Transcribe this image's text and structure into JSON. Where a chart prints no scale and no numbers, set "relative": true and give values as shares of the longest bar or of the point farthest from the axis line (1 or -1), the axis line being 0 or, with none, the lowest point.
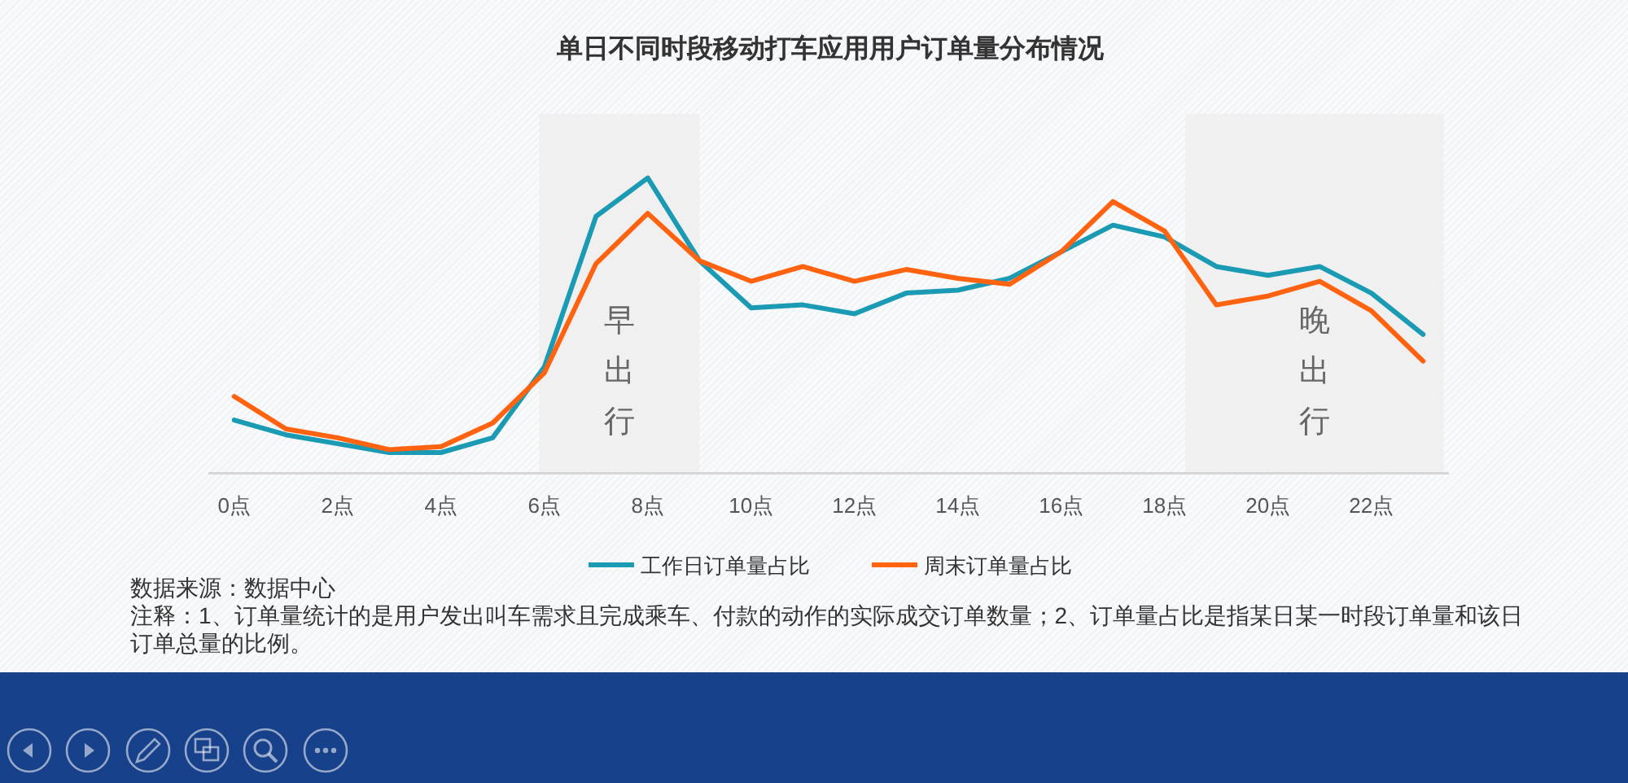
{
  "chart_data": {
    "type": "line",
    "title": "单日不同时段移动打车应用用户订单量分布情况",
    "x": [
      0,
      1,
      2,
      3,
      4,
      5,
      6,
      7,
      8,
      9,
      10,
      11,
      12,
      13,
      14,
      15,
      16,
      17,
      18,
      19,
      20,
      21,
      22,
      23
    ],
    "xlim": [
      -0.5,
      23.5
    ],
    "xticks": [
      {
        "value": 0,
        "label": "0点"
      },
      {
        "value": 2,
        "label": "2点"
      },
      {
        "value": 4,
        "label": "4点"
      },
      {
        "value": 6,
        "label": "6点"
      },
      {
        "value": 8,
        "label": "8点"
      },
      {
        "value": 10,
        "label": "10点"
      },
      {
        "value": 12,
        "label": "12点"
      },
      {
        "value": 14,
        "label": "14点"
      },
      {
        "value": 16,
        "label": "16点"
      },
      {
        "value": 18,
        "label": "18点"
      },
      {
        "value": 20,
        "label": "20点"
      },
      {
        "value": 22,
        "label": "22点"
      }
    ],
    "relative": true,
    "series": [
      {
        "name": "工作日订单量占比",
        "color": "#1b9bb3",
        "values": [
          0.18,
          0.13,
          0.1,
          0.07,
          0.07,
          0.12,
          0.36,
          0.87,
          1.0,
          0.72,
          0.56,
          0.57,
          0.54,
          0.61,
          0.62,
          0.66,
          0.75,
          0.84,
          0.8,
          0.7,
          0.67,
          0.7,
          0.61,
          0.47
        ]
      },
      {
        "name": "周末订单量占比",
        "color": "#ff6310",
        "values": [
          0.26,
          0.15,
          0.12,
          0.08,
          0.09,
          0.17,
          0.34,
          0.71,
          0.88,
          0.72,
          0.65,
          0.7,
          0.65,
          0.69,
          0.66,
          0.64,
          0.75,
          0.92,
          0.82,
          0.57,
          0.6,
          0.65,
          0.55,
          0.38
        ]
      }
    ],
    "bands": [
      {
        "axis": "x",
        "from": 5.9,
        "to": 9,
        "label": "早出行",
        "color": "#f0f0f0"
      },
      {
        "axis": "x",
        "from": 18.4,
        "to": 23.4,
        "label": "晚出行",
        "color": "#f0f0f0"
      }
    ],
    "legend": "bottom",
    "line_style": "solid",
    "annotations": [
      "数据来源：数据中心",
      "注释：1、订单量统计的是用户发出叫车需求且完成乘车、付款的动作的实际成交订单数量；2、订单量占比是指某日某一时段订单量和该日订单总量的比例。"
    ]
  }
}
